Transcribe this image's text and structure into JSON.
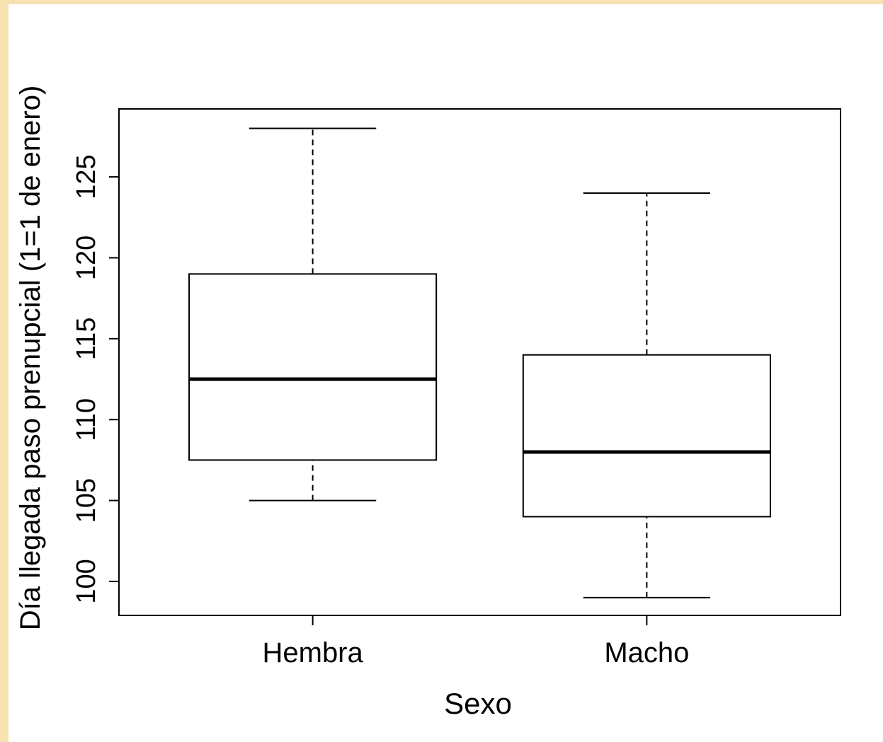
{
  "chart_data": {
    "type": "boxplot",
    "xlabel": "Sexo",
    "ylabel": "Día llegada paso prenupcial (1=1 de enero)",
    "categories": [
      "Hembra",
      "Macho"
    ],
    "boxes": [
      {
        "category": "Hembra",
        "min": 105,
        "q1": 107.5,
        "median": 112.5,
        "q3": 119,
        "max": 128
      },
      {
        "category": "Macho",
        "min": 99,
        "q1": 104,
        "median": 108,
        "q3": 114,
        "max": 124
      }
    ],
    "yticks": [
      100,
      105,
      110,
      115,
      120,
      125
    ],
    "ylim": [
      97.9,
      129.2
    ],
    "colors": {
      "page_border": "#f7e2b2",
      "box": "#000000",
      "background": "#ffffff"
    }
  }
}
